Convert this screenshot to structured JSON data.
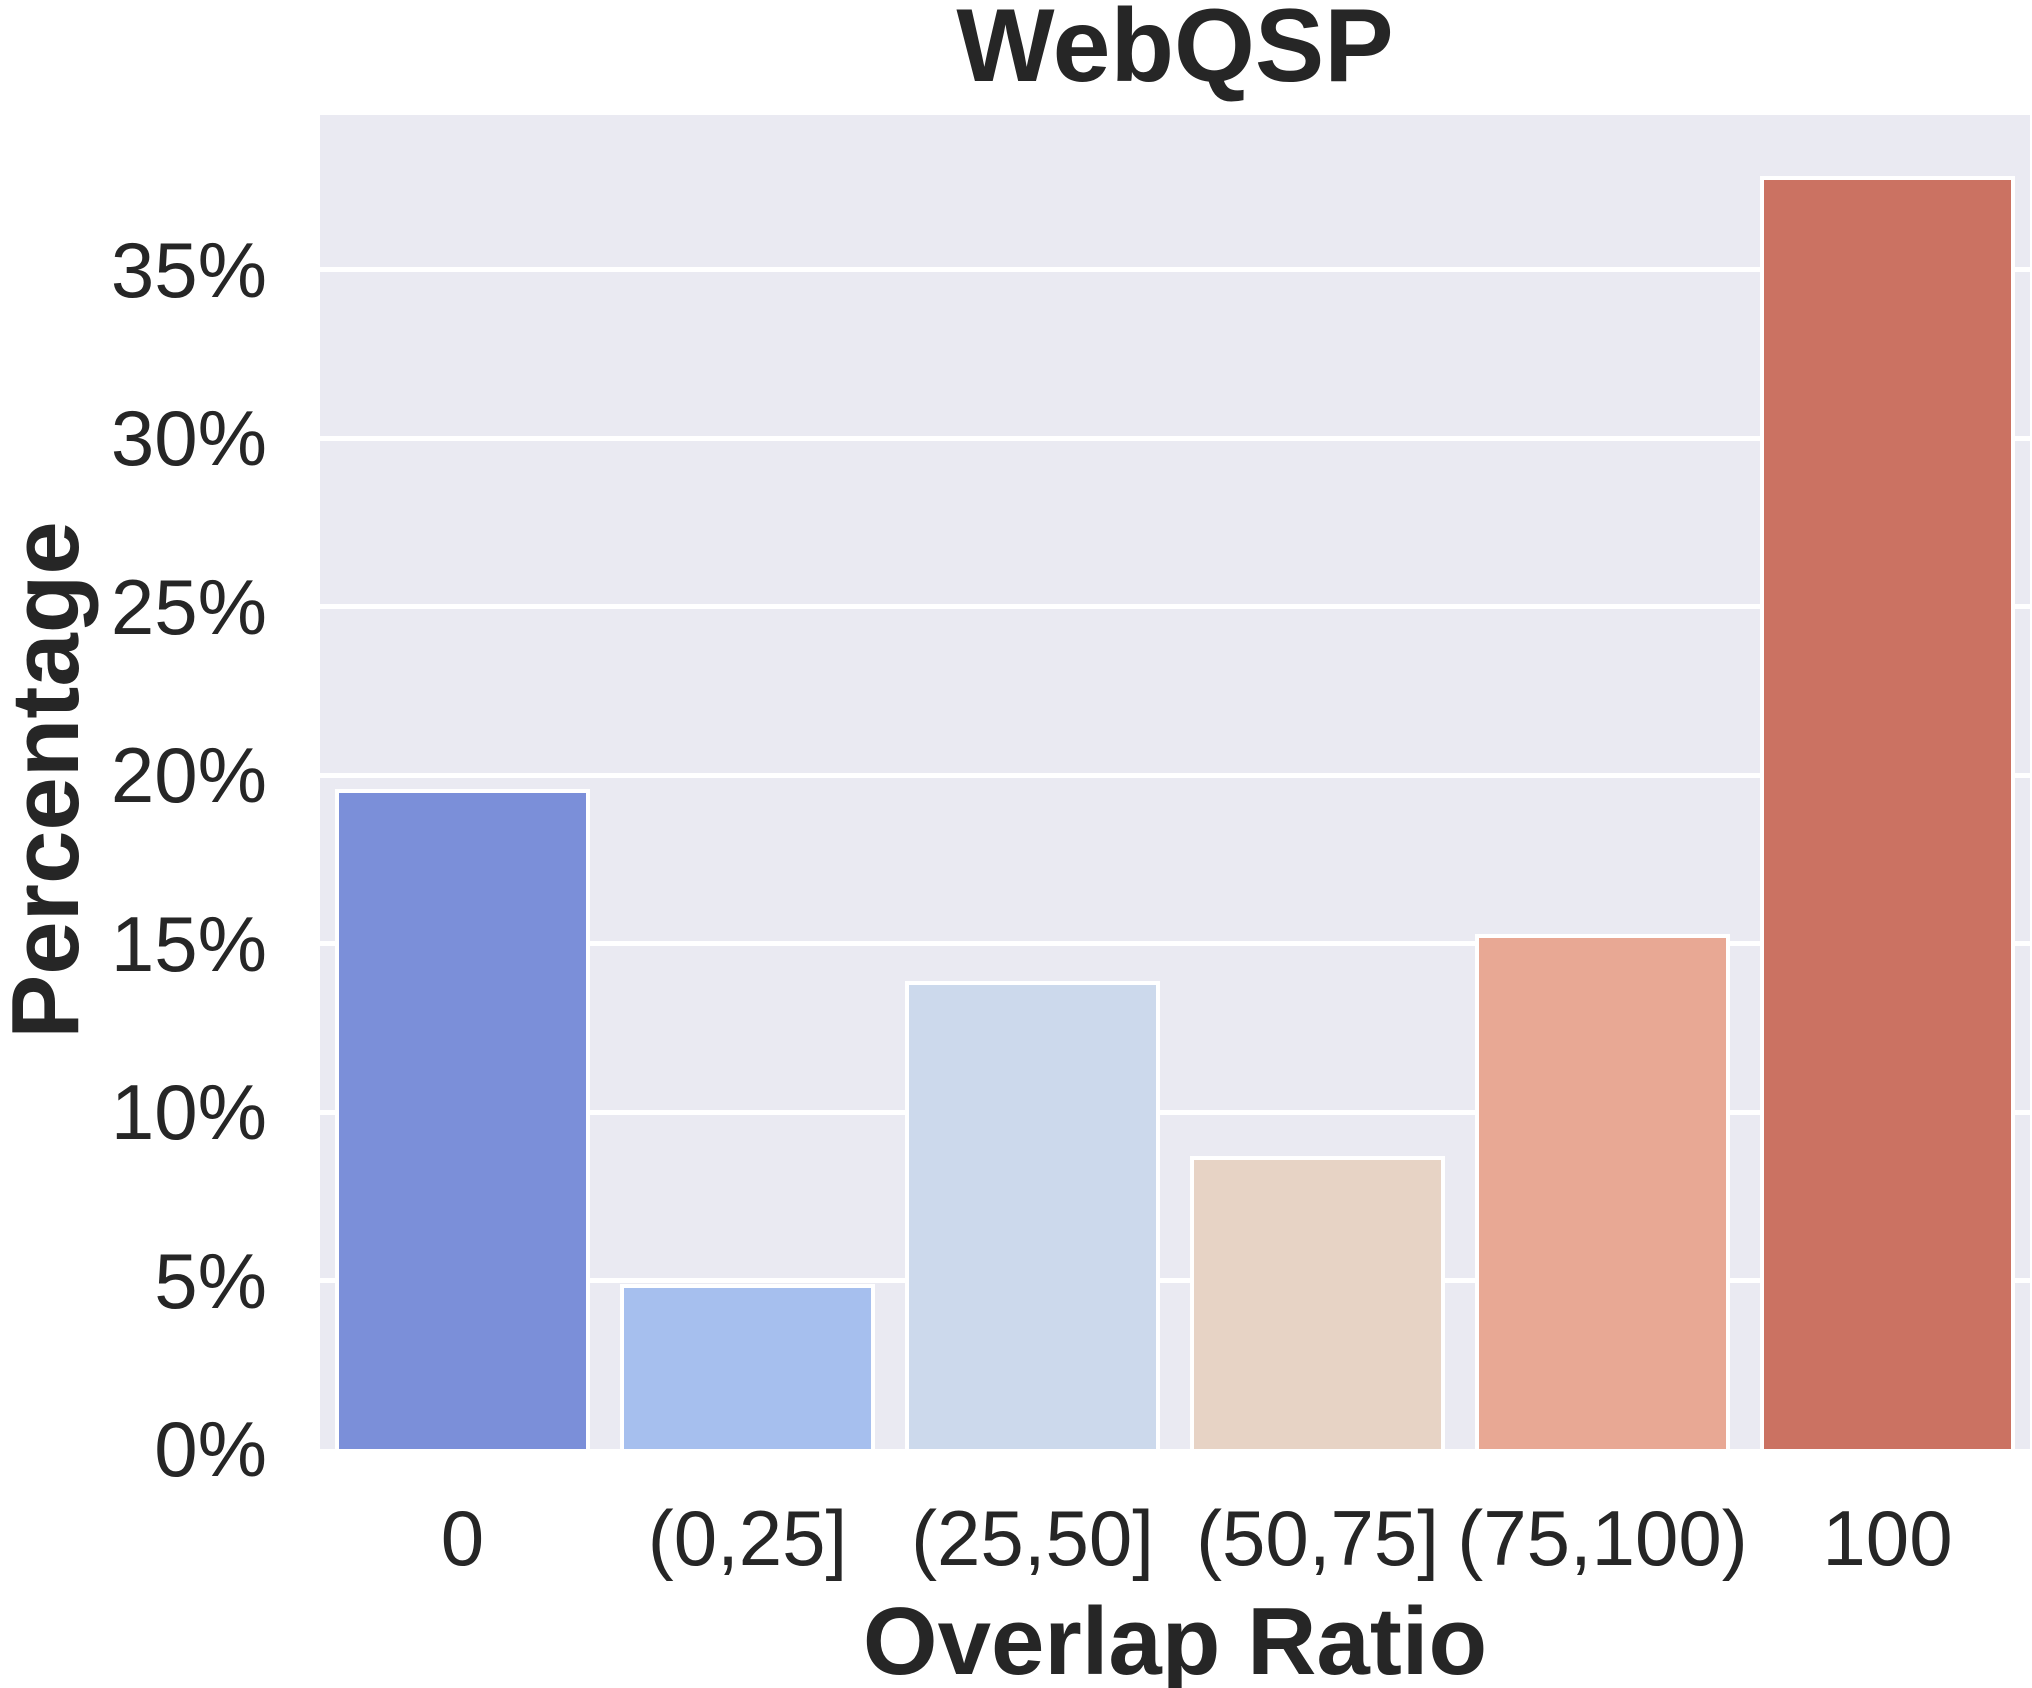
{
  "chart_data": {
    "type": "bar",
    "title": "WebQSP",
    "xlabel": "Overlap Ratio",
    "ylabel": "Percentage",
    "categories": [
      "0",
      "(0,25]",
      "(25,50]",
      "(50,75]",
      "(75,100)",
      "100"
    ],
    "values": [
      19.6,
      4.9,
      13.9,
      8.7,
      15.3,
      37.8
    ],
    "value_unit": "%",
    "bar_colors": [
      "#7b8fd9",
      "#a6bfee",
      "#ccd9ec",
      "#e7d3c5",
      "#e8a894",
      "#cb7262"
    ],
    "ylim": [
      0,
      39.6
    ],
    "ytick_values": [
      0,
      5,
      10,
      15,
      20,
      25,
      30,
      35
    ],
    "ytick_labels": [
      "0%",
      "5%",
      "10%",
      "15%",
      "20%",
      "25%",
      "30%",
      "35%"
    ],
    "grid": "horizontal",
    "legend_position": "none",
    "plot_background_color": "#eaeaf2",
    "grid_color": "#ffffff",
    "text_color": "#262626",
    "bar_edge_color": "#ffffff"
  }
}
